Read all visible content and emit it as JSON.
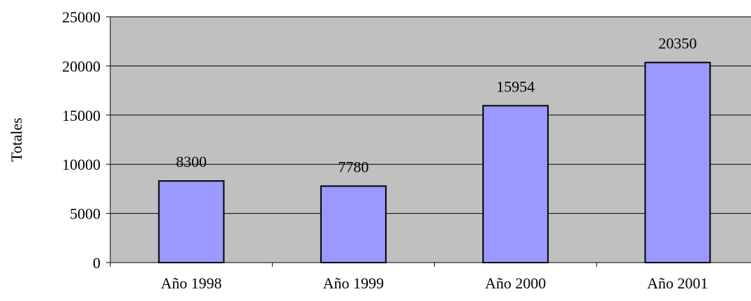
{
  "chart_data": {
    "type": "bar",
    "categories": [
      "Año 1998",
      "Año 1999",
      "Año 2000",
      "Año 2001"
    ],
    "values": [
      8300,
      7780,
      15954,
      20350
    ],
    "data_labels": [
      "8300",
      "7780",
      "15954",
      "20350"
    ],
    "title": "",
    "xlabel": "",
    "ylabel": "Totales",
    "ylim": [
      0,
      25000
    ],
    "yticks": [
      0,
      5000,
      10000,
      15000,
      20000,
      25000
    ],
    "ytick_labels": [
      "0",
      "5000",
      "10000",
      "15000",
      "20000",
      "25000"
    ],
    "grid": true,
    "legend": "none",
    "colors": {
      "plot_background": "#c0c0c0",
      "bar_fill": "#9999ff",
      "bar_stroke": "#000000",
      "gridline": "#000000",
      "text": "#000000"
    }
  }
}
